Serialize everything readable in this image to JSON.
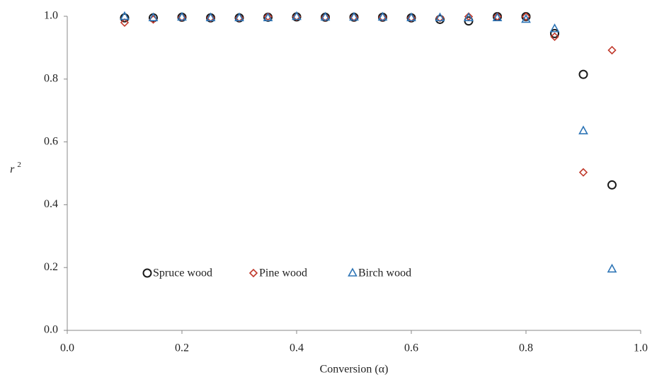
{
  "chart_data": {
    "type": "scatter",
    "x_label": "Conversion (α)",
    "y_label": "r",
    "y_label_superscript": "2",
    "x": [
      0.1,
      0.15,
      0.2,
      0.25,
      0.3,
      0.35,
      0.4,
      0.45,
      0.5,
      0.55,
      0.6,
      0.65,
      0.7,
      0.75,
      0.8,
      0.85,
      0.9,
      0.95
    ],
    "series": [
      {
        "name": "Spruce wood",
        "color": "#1a1a1a",
        "marker": "circle",
        "values": [
          0.995,
          0.995,
          0.997,
          0.995,
          0.995,
          0.997,
          0.998,
          0.997,
          0.997,
          0.997,
          0.995,
          0.99,
          0.985,
          0.999,
          0.999,
          0.945,
          0.815,
          0.463
        ]
      },
      {
        "name": "Pine wood",
        "color": "#c0392b",
        "marker": "diamond",
        "values": [
          0.98,
          0.99,
          0.997,
          0.995,
          0.995,
          0.999,
          0.999,
          0.997,
          0.997,
          0.997,
          0.995,
          0.995,
          0.999,
          0.999,
          0.999,
          0.935,
          0.503,
          0.892
        ]
      },
      {
        "name": "Birch wood",
        "color": "#2e75b6",
        "marker": "triangle",
        "values": [
          0.999,
          0.995,
          0.997,
          0.995,
          0.995,
          0.995,
          0.999,
          0.997,
          0.997,
          0.997,
          0.995,
          0.995,
          0.995,
          0.995,
          0.99,
          0.96,
          0.635,
          0.195
        ]
      }
    ],
    "xlim": [
      0,
      1
    ],
    "ylim": [
      0,
      1
    ],
    "xticks": [
      {
        "value": 0,
        "label": "0.0"
      },
      0.2,
      0.4,
      0.6,
      0.8,
      {
        "value": 1,
        "label": "1.0"
      }
    ],
    "yticks": [
      {
        "value": 0,
        "label": "0.0"
      },
      0.2,
      0.4,
      0.6,
      0.8,
      {
        "value": 1,
        "label": "1.0"
      }
    ],
    "grid": false,
    "legend": "lower-left"
  }
}
